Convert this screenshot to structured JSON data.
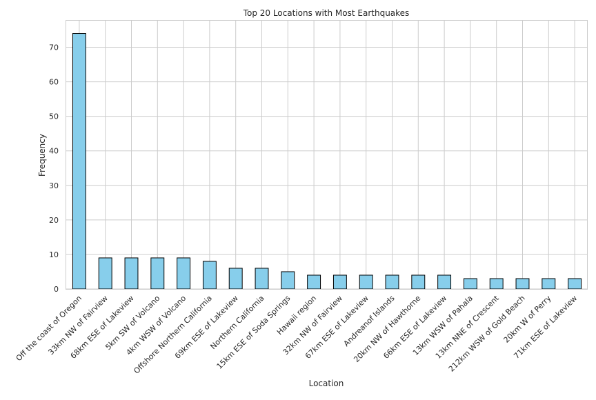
{
  "chart_data": {
    "type": "bar",
    "title": "Top 20 Locations with Most Earthquakes",
    "xlabel": "Location",
    "ylabel": "Frequency",
    "categories": [
      "Off the coast of Oregon",
      "33km NW of Fairview",
      "68km ESE of Lakeview",
      "5km SW of Volcano",
      "4km WSW of Volcano",
      "Offshore Northern California",
      "69km ESE of Lakeview",
      "Northern California",
      "15km ESE of Soda Springs",
      "Hawaii region",
      "32km NW of Fairview",
      "67km ESE of Lakeview",
      "Andreanof Islands",
      "20km NW of Hawthorne",
      "66km ESE of Lakeview",
      "13km WSW of Pahala",
      "13km NNE of Crescent",
      "212km WSW of Gold Beach",
      "20km W of Perry",
      "71km ESE of Lakeview"
    ],
    "values": [
      74,
      9,
      9,
      9,
      9,
      8,
      6,
      6,
      5,
      4,
      4,
      4,
      4,
      4,
      4,
      3,
      3,
      3,
      3,
      3
    ],
    "yticks": [
      "0",
      "10",
      "20",
      "30",
      "40",
      "50",
      "60",
      "70"
    ],
    "ylim": [
      0,
      77.7
    ],
    "grid": true,
    "colors": {
      "bar_fill": "#87ceeb",
      "bar_edge": "#000000",
      "grid": "#cccccc",
      "axes_edge": "#cccccc"
    }
  }
}
